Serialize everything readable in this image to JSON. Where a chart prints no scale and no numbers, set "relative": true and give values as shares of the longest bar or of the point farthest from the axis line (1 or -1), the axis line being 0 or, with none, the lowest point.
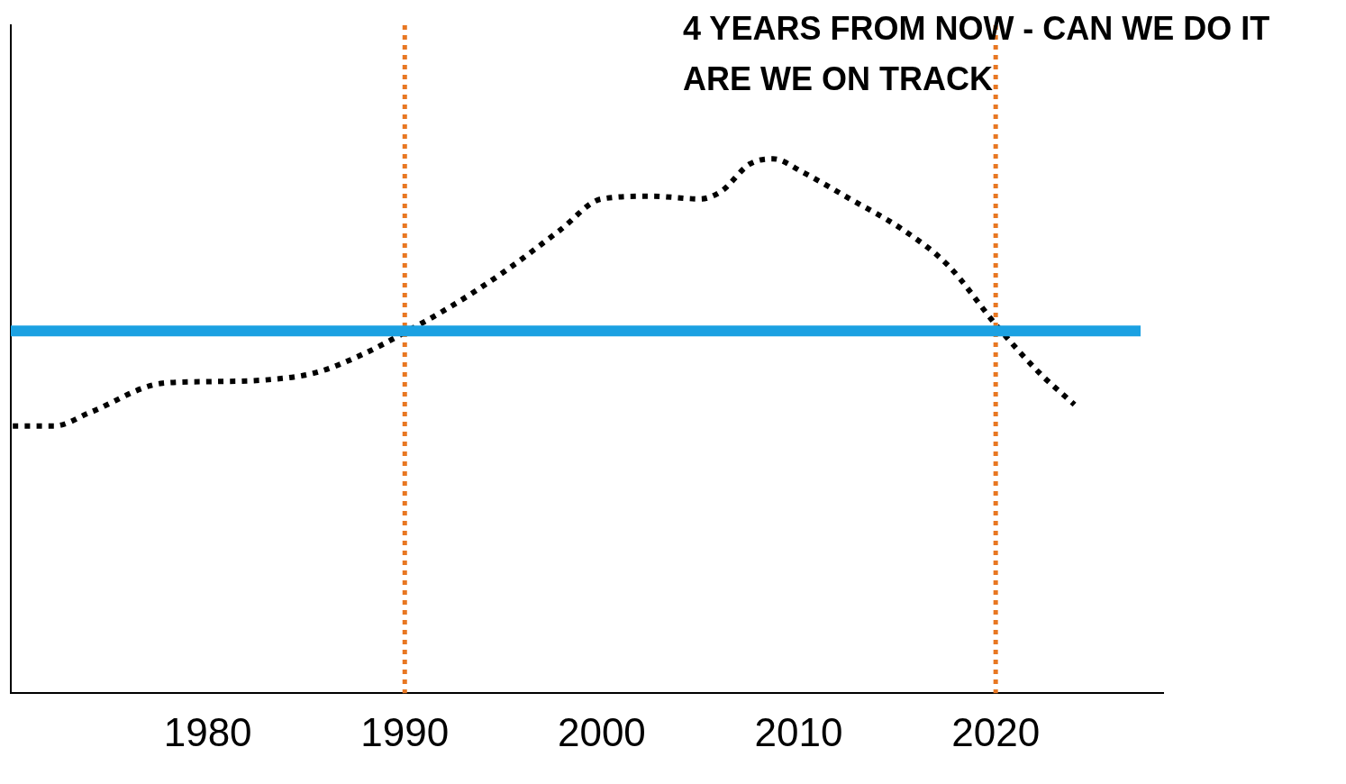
{
  "chart_data": {
    "type": "line",
    "relative": true,
    "grid": false,
    "marker": "none",
    "line_style": "dotted",
    "xlim": [
      1970,
      2028.5
    ],
    "xticks": [
      1980,
      1990,
      2000,
      2010,
      2020
    ],
    "series": [
      {
        "color": "#000000",
        "x": [
          1970.1,
          1972.2,
          1974,
          1977.7,
          1980,
          1983.2,
          1985.5,
          1987.8,
          1990,
          1992.4,
          1995.1,
          1997.9,
          2000,
          2002.5,
          2005,
          2006.1,
          2007.5,
          2008.7,
          2010.2,
          2012.6,
          2015.3,
          2017.6,
          2020,
          2022.2,
          2024
        ],
        "values": [
          0.5,
          0.5,
          0.525,
          0.58,
          0.583,
          0.587,
          0.6,
          0.633,
          0.675,
          0.725,
          0.79,
          0.867,
          0.925,
          0.93,
          0.925,
          0.94,
          0.99,
          1,
          0.975,
          0.925,
          0.867,
          0.8,
          0.69,
          0.6,
          0.54
        ]
      }
    ],
    "ref_lines": [
      {
        "axis": "x",
        "value": 1990,
        "color": "#e87722",
        "line_style": "dotted"
      },
      {
        "axis": "x",
        "value": 2020,
        "color": "#e87722",
        "line_style": "dotted"
      },
      {
        "axis": "y",
        "value": 0.678,
        "color": "#1ba1e2",
        "line_style": "solid"
      }
    ],
    "annotations": [
      "4 YEARS FROM NOW - CAN WE DO IT",
      "ARE WE ON TRACK"
    ]
  }
}
